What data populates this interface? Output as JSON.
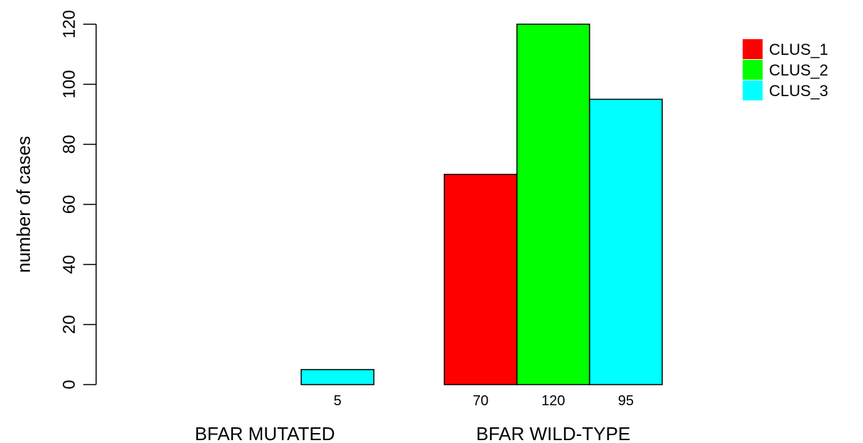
{
  "chart_data": {
    "type": "bar",
    "categories": [
      "BFAR MUTATED",
      "BFAR WILD-TYPE"
    ],
    "series": [
      {
        "name": "CLUS_1",
        "color": "#ff0000",
        "values": [
          0,
          70
        ],
        "labels": [
          "",
          "70"
        ]
      },
      {
        "name": "CLUS_2",
        "color": "#00ff00",
        "values": [
          0,
          120
        ],
        "labels": [
          "",
          "120"
        ]
      },
      {
        "name": "CLUS_3",
        "color": "#00ffff",
        "values": [
          5,
          95
        ],
        "labels": [
          "5",
          "95"
        ]
      }
    ],
    "ylabel": "number of cases",
    "xlabel": "",
    "yticks": [
      0,
      20,
      40,
      60,
      80,
      100,
      120
    ],
    "ylim": [
      0,
      120
    ],
    "legend_position": "top-right",
    "grid": false
  }
}
